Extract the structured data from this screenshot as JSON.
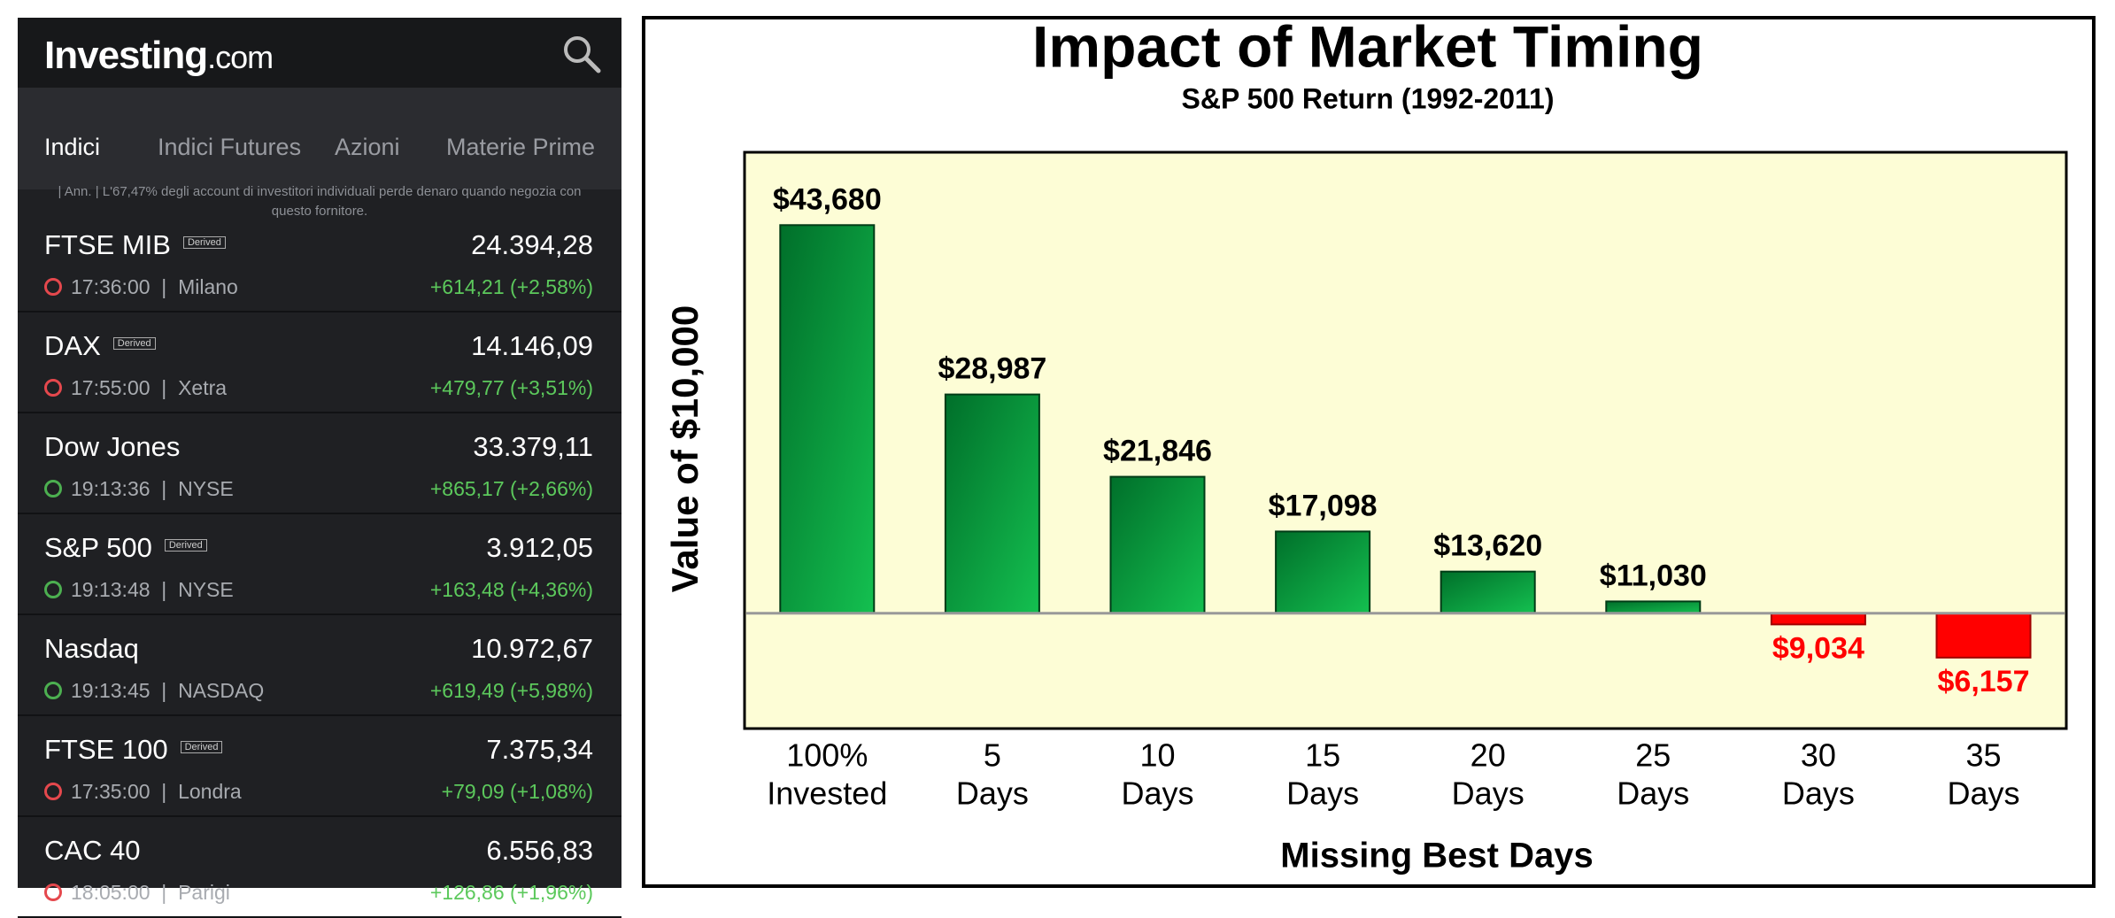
{
  "app": {
    "logo": {
      "brand": "Investing",
      "suffix": ".com"
    },
    "tabs": [
      "Indici",
      "Indici Futures",
      "Azioni",
      "Materie Prime"
    ],
    "active_tab": 0,
    "disclaimer": [
      "| Ann. | L'67,47% degli account di investitori individuali perde denaro quando negozia con",
      "questo fornitore."
    ],
    "rows": [
      {
        "name": "FTSE MIB",
        "badge": "Derived",
        "price": "24.394,28",
        "time": "17:36:00",
        "exchange": "Milano",
        "change": "+614,21 (+2,58%)",
        "clock_color": "#e5484d"
      },
      {
        "name": "DAX",
        "badge": "Derived",
        "price": "14.146,09",
        "time": "17:55:00",
        "exchange": "Xetra",
        "change": "+479,77 (+3,51%)",
        "clock_color": "#e5484d"
      },
      {
        "name": "Dow Jones",
        "price": "33.379,11",
        "time": "19:13:36",
        "exchange": "NYSE",
        "change": "+865,17 (+2,66%)",
        "clock_color": "#4caf50"
      },
      {
        "name": "S&P 500",
        "badge": "Derived",
        "price": "3.912,05",
        "time": "19:13:48",
        "exchange": "NYSE",
        "change": "+163,48 (+4,36%)",
        "clock_color": "#4caf50"
      },
      {
        "name": "Nasdaq",
        "price": "10.972,67",
        "time": "19:13:45",
        "exchange": "NASDAQ",
        "change": "+619,49 (+5,98%)",
        "clock_color": "#4caf50"
      },
      {
        "name": "FTSE 100",
        "badge": "Derived",
        "price": "7.375,34",
        "time": "17:35:00",
        "exchange": "Londra",
        "change": "+79,09 (+1,08%)",
        "clock_color": "#e5484d"
      },
      {
        "name": "CAC 40",
        "price": "6.556,83",
        "time": "18:05:00",
        "exchange": "Parigi",
        "change": "+126,86 (+1,96%)",
        "clock_color": "#e5484d"
      }
    ]
  },
  "chart_data": {
    "type": "bar",
    "title": "Impact of Market Timing",
    "subtitle": "S&P 500 Return (1992-2011)",
    "y_label": "Value of $10,000",
    "x_label": "Missing Best Days",
    "categories": [
      [
        "100%",
        "Invested"
      ],
      [
        "5",
        "Days"
      ],
      [
        "10",
        "Days"
      ],
      [
        "15",
        "Days"
      ],
      [
        "20",
        "Days"
      ],
      [
        "25",
        "Days"
      ],
      [
        "30",
        "Days"
      ],
      [
        "35",
        "Days"
      ]
    ],
    "values": [
      43680,
      28987,
      21846,
      17098,
      13620,
      11030,
      9034,
      6157
    ],
    "value_labels": [
      "$43,680",
      "$28,987",
      "$21,846",
      "$17,098",
      "$13,620",
      "$11,030",
      "$9,034",
      "$6,157"
    ],
    "baseline": 10000,
    "ylim": [
      0,
      50000
    ],
    "color": "#0a9a3c",
    "below_color": "#ff0000"
  }
}
